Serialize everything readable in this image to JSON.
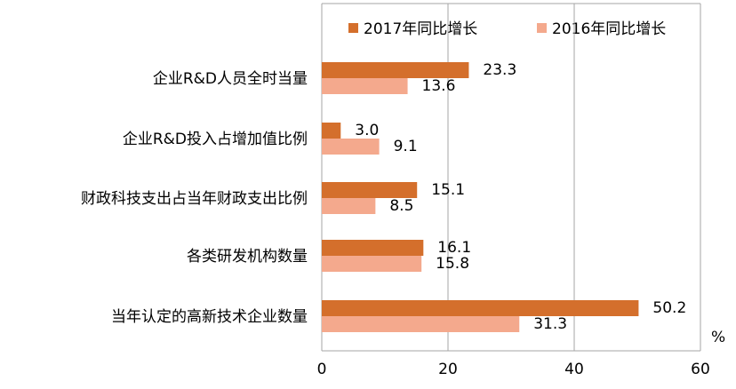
{
  "chart_data": {
    "type": "bar",
    "orientation": "horizontal",
    "categories": [
      "企业R&D人员全时当量",
      "企业R&D投入占增加值比例",
      "财政科技支出占当年财政支出比例",
      "各类研发机构数量",
      "当年认定的高新技术企业数量"
    ],
    "series": [
      {
        "name": "2017年同比增长",
        "values": [
          23.3,
          3.0,
          15.1,
          16.1,
          50.2
        ],
        "labels": [
          "23.3",
          "3.0",
          "15.1",
          "16.1",
          "50.2"
        ],
        "color": "#D46F2C"
      },
      {
        "name": "2016年同比增长",
        "values": [
          13.6,
          9.1,
          8.5,
          15.8,
          31.3
        ],
        "labels": [
          "13.6",
          "9.1",
          "8.5",
          "15.8",
          "31.3"
        ],
        "color": "#F4A98D"
      }
    ],
    "xlim": [
      0,
      60
    ],
    "xticks": [
      "0",
      "20",
      "40",
      "60"
    ],
    "unit": "%",
    "legend_position": "top",
    "grid": true
  }
}
